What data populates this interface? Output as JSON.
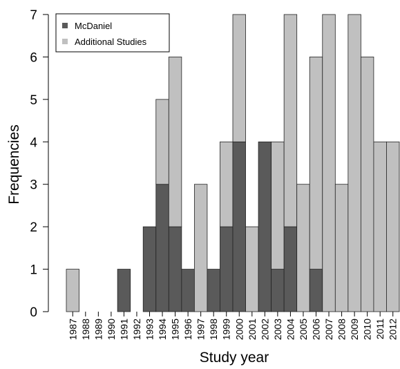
{
  "chart_data": {
    "type": "bar",
    "stacked": true,
    "xlabel": "Study year",
    "ylabel": "Frequencies",
    "ylim": [
      0,
      7
    ],
    "yticks": [
      "0",
      "1",
      "2",
      "3",
      "4",
      "5",
      "6",
      "7"
    ],
    "grid": false,
    "legend_position": "top-left",
    "categories": [
      "1987",
      "1988",
      "1989",
      "1990",
      "1991",
      "1992",
      "1993",
      "1994",
      "1995",
      "1996",
      "1997",
      "1998",
      "1999",
      "2000",
      "2001",
      "2002",
      "2003",
      "2004",
      "2005",
      "2006",
      "2007",
      "2008",
      "2009",
      "2010",
      "2011",
      "2012"
    ],
    "series": [
      {
        "name": "McDaniel",
        "color": "#5a5a5a",
        "values": [
          0,
          0,
          0,
          0,
          1,
          0,
          2,
          3,
          2,
          1,
          0,
          1,
          2,
          4,
          0,
          4,
          1,
          2,
          0,
          1,
          0,
          0,
          0,
          0,
          0,
          0
        ]
      },
      {
        "name": "Additional Studies",
        "color": "#c0c0c0",
        "values": [
          1,
          0,
          0,
          0,
          0,
          0,
          0,
          2,
          4,
          0,
          3,
          0,
          2,
          3,
          2,
          0,
          3,
          5,
          3,
          5,
          7,
          3,
          7,
          6,
          4,
          4
        ]
      }
    ]
  }
}
